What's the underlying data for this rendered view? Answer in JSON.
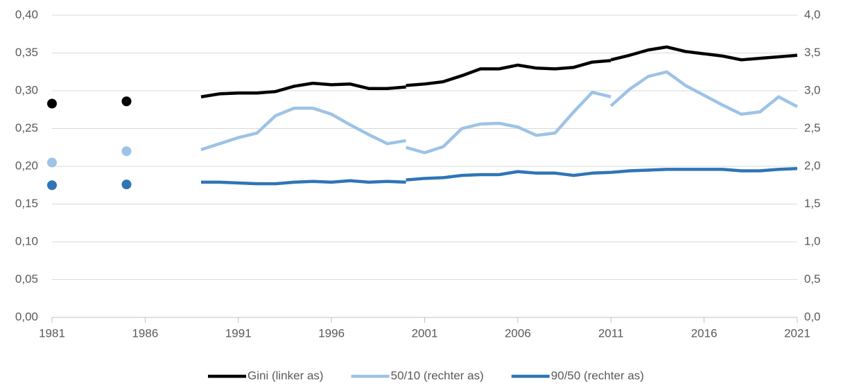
{
  "chart_data": {
    "type": "line",
    "x": [
      1981,
      1983,
      1985,
      1987,
      1989,
      1990,
      1991,
      1992,
      1993,
      1994,
      1995,
      1996,
      1997,
      1998,
      1999,
      2000,
      2000,
      2000,
      2001,
      2002,
      2003,
      2004,
      2005,
      2006,
      2007,
      2008,
      2009,
      2010,
      2011,
      2011,
      2011,
      2012,
      2013,
      2014,
      2015,
      2016,
      2017,
      2018,
      2019,
      2020,
      2021
    ],
    "series": [
      {
        "name": "Gini (linker as)",
        "color": "#000000",
        "values": [
          0.283,
          null,
          0.286,
          null,
          0.292,
          0.296,
          0.297,
          0.297,
          0.299,
          0.306,
          0.31,
          0.308,
          0.309,
          0.303,
          0.303,
          0.305,
          null,
          0.307,
          0.309,
          0.312,
          0.32,
          0.329,
          0.329,
          0.334,
          0.33,
          0.329,
          0.331,
          0.338,
          0.34,
          null,
          0.341,
          0.347,
          0.354,
          0.358,
          0.352,
          0.349,
          0.346,
          0.341,
          0.343,
          0.345,
          0.347
        ]
      },
      {
        "name": "50/10 (rechter as)",
        "color": "#9dc3e6",
        "axis": "y2",
        "values": [
          2.05,
          null,
          2.2,
          null,
          2.22,
          2.3,
          2.38,
          2.44,
          2.67,
          2.77,
          2.77,
          2.69,
          2.55,
          2.42,
          2.3,
          2.34,
          null,
          2.25,
          2.18,
          2.26,
          2.5,
          2.56,
          2.57,
          2.52,
          2.41,
          2.44,
          2.72,
          2.98,
          2.92,
          null,
          2.8,
          3.02,
          3.19,
          3.25,
          3.07,
          2.94,
          2.81,
          2.69,
          2.72,
          2.92,
          2.79
        ]
      },
      {
        "name": "90/50 (rechter as)",
        "color": "#2e75b6",
        "axis": "y2",
        "values": [
          1.75,
          null,
          1.76,
          null,
          1.79,
          1.79,
          1.78,
          1.77,
          1.77,
          1.79,
          1.8,
          1.79,
          1.81,
          1.79,
          1.8,
          1.79,
          null,
          1.82,
          1.84,
          1.85,
          1.88,
          1.89,
          1.89,
          1.93,
          1.91,
          1.91,
          1.88,
          1.91,
          1.92,
          null,
          1.92,
          1.94,
          1.95,
          1.96,
          1.96,
          1.96,
          1.96,
          1.94,
          1.94,
          1.96,
          1.97
        ]
      }
    ],
    "xlim": [
      1981,
      2021
    ],
    "xticks": [
      1981,
      1986,
      1991,
      1996,
      2001,
      2006,
      2011,
      2016,
      2021
    ],
    "ylim": [
      0,
      0.4
    ],
    "yticks": [
      {
        "value": 0,
        "label": "0,00"
      },
      {
        "value": 0.05,
        "label": "0,05"
      },
      {
        "value": 0.1,
        "label": "0,10"
      },
      {
        "value": 0.15,
        "label": "0,15"
      },
      {
        "value": 0.2,
        "label": "0,20"
      },
      {
        "value": 0.25,
        "label": "0,25"
      },
      {
        "value": 0.3,
        "label": "0,30"
      },
      {
        "value": 0.35,
        "label": "0,35"
      },
      {
        "value": 0.4,
        "label": "0,40"
      }
    ],
    "y2lim": [
      0,
      4
    ],
    "y2ticks": [
      {
        "value": 0,
        "label": "0,0"
      },
      {
        "value": 0.5,
        "label": "0,5"
      },
      {
        "value": 1,
        "label": "1,0"
      },
      {
        "value": 1.5,
        "label": "1,5"
      },
      {
        "value": 2,
        "label": "2,0"
      },
      {
        "value": 2.5,
        "label": "2,5"
      },
      {
        "value": 3,
        "label": "3,0"
      },
      {
        "value": 3.5,
        "label": "3,5"
      },
      {
        "value": 4,
        "label": "4,0"
      }
    ],
    "grid": true,
    "legend": "bottom"
  }
}
